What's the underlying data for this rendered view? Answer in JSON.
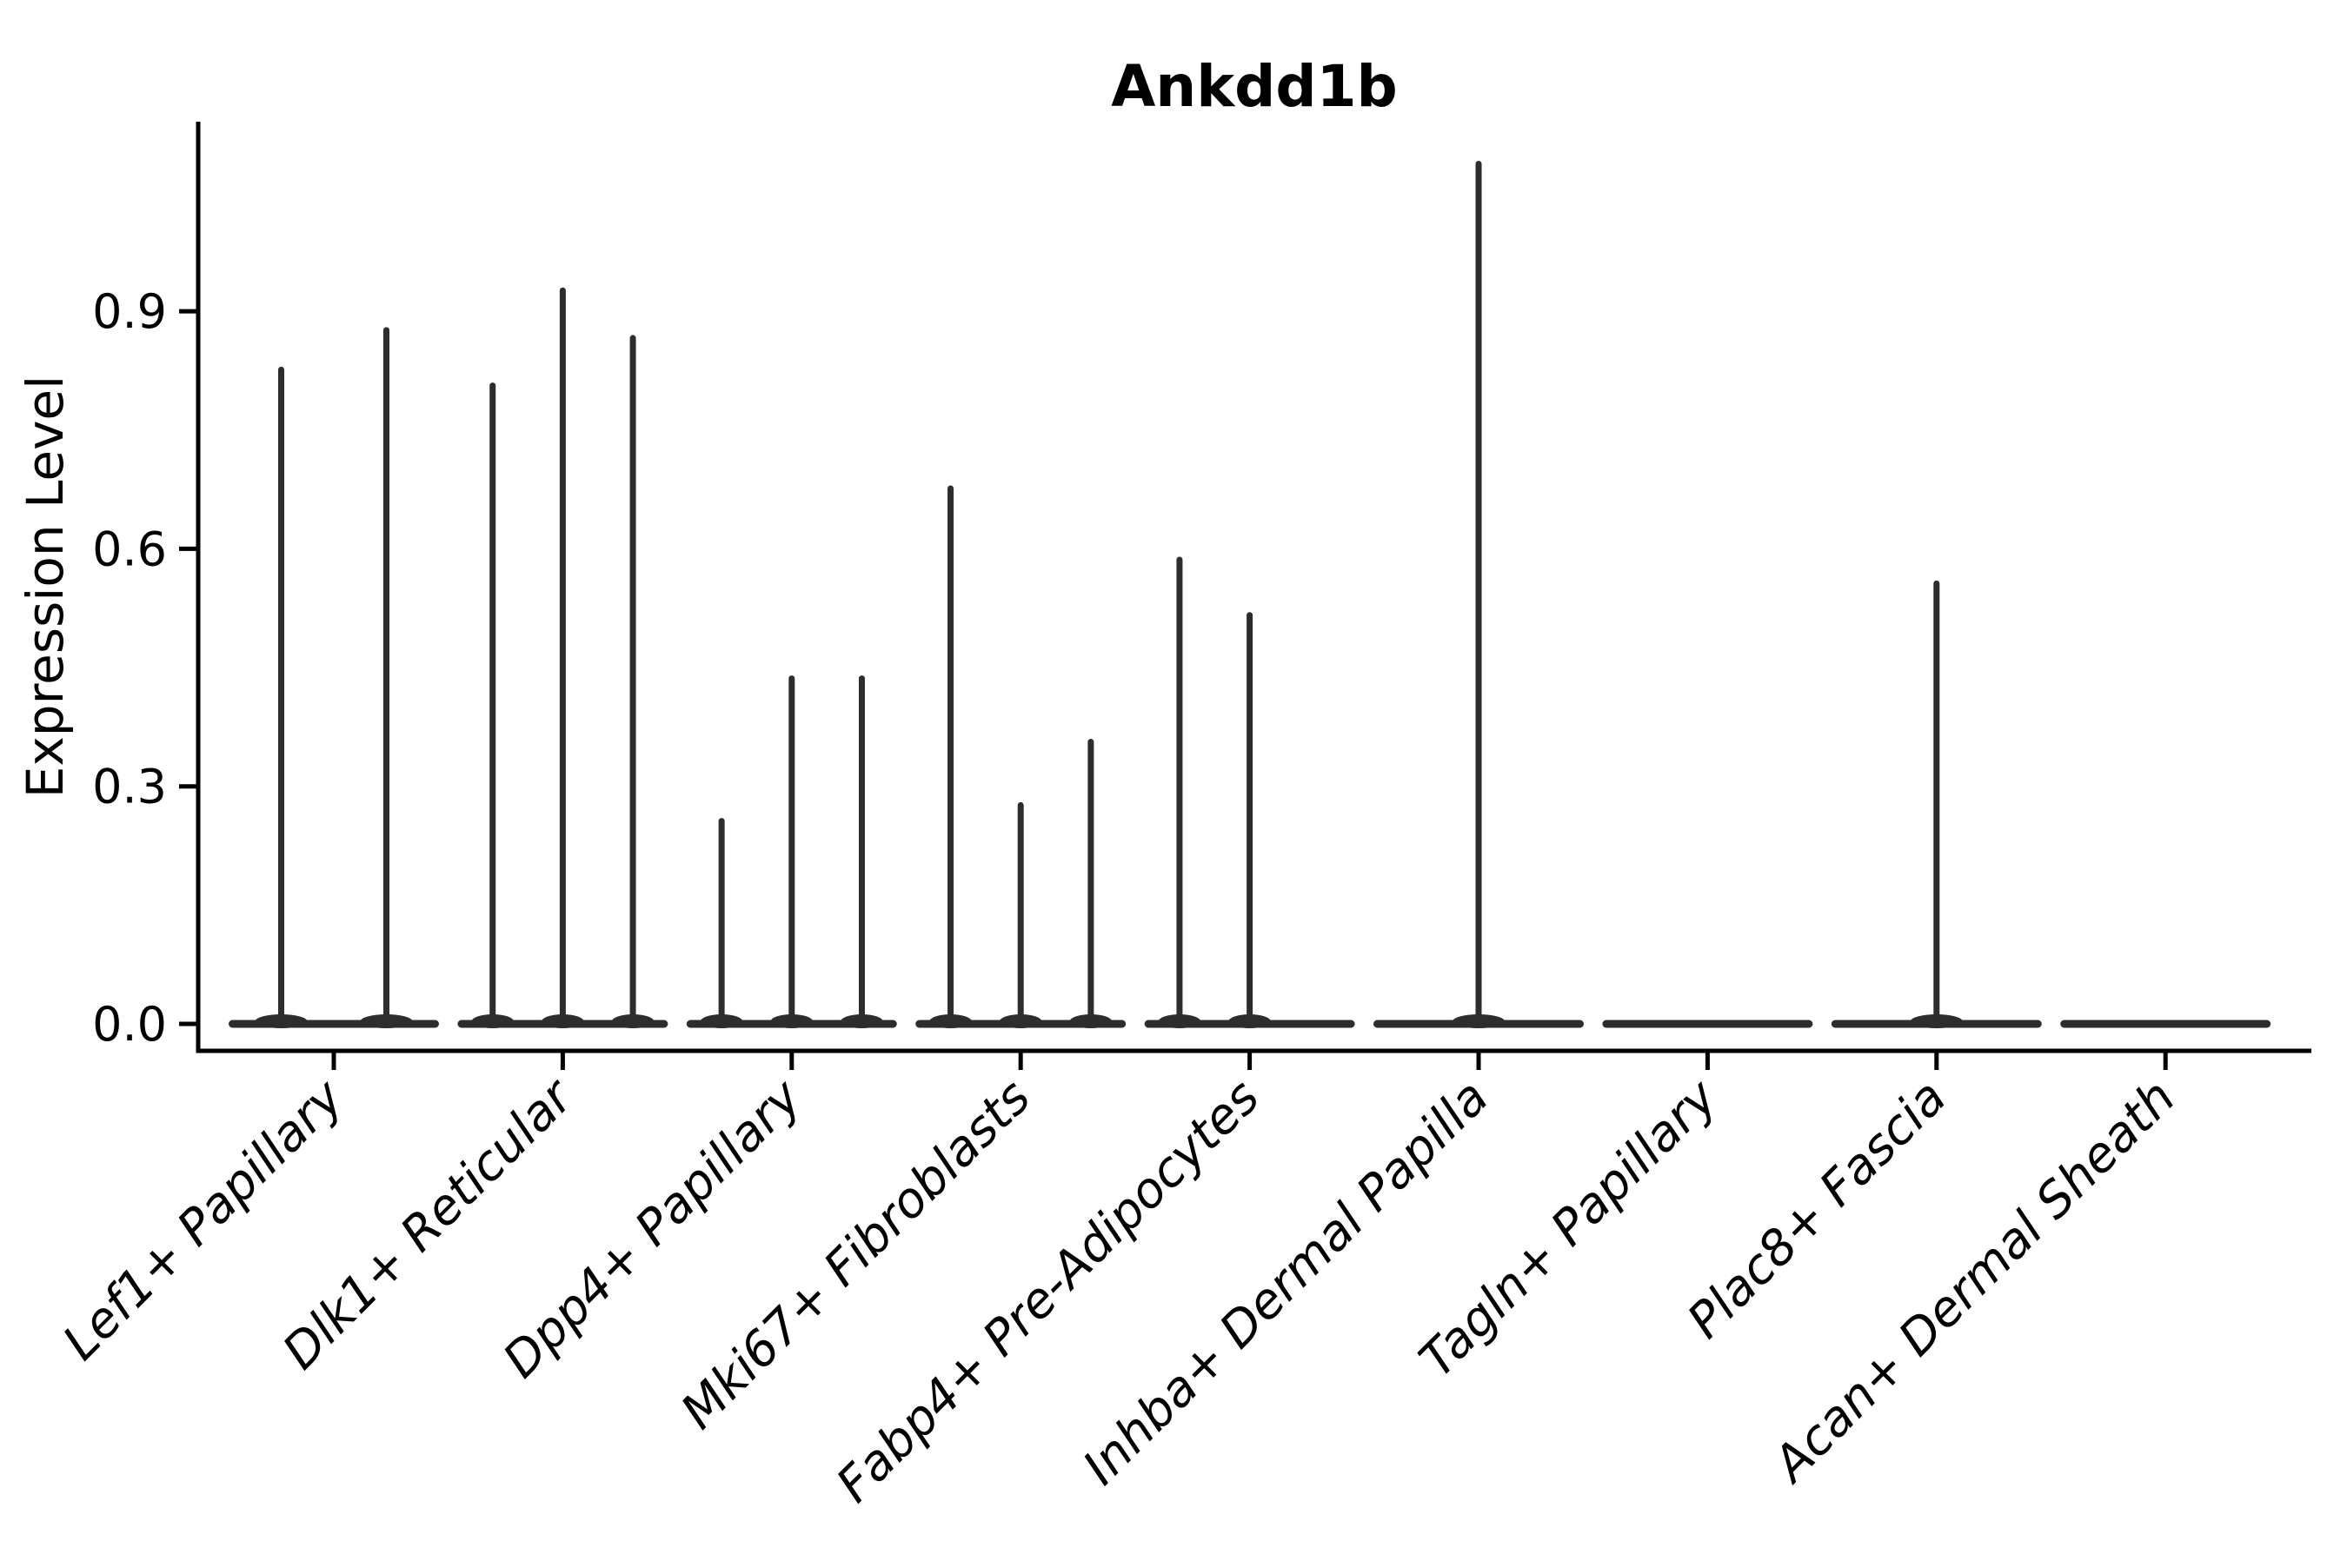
{
  "figure": {
    "background": "#ffffff"
  },
  "chart_data": {
    "type": "violin",
    "title": "Ankdd1b",
    "ylabel": "Expression Level",
    "xlabel": "",
    "grid": false,
    "legend_position": "none",
    "ylim": [
      -0.034,
      1.14
    ],
    "ytick_labels": [
      "0.0",
      "0.3",
      "0.6",
      "0.9"
    ],
    "ytick_values": [
      0.0,
      0.3,
      0.6,
      0.9
    ],
    "x_label_rotation_deg": 45,
    "x_label_style": "italic",
    "categories": [
      "Lef1+ Papillary",
      "Dlk1+ Reticular",
      "Dpp4+ Papillary",
      "Mki67+ Fibroblasts",
      "Fabp4+ Pre-Adipocytes",
      "Inhba+ Dermal Papilla",
      "Tagln+ Papillary",
      "Plac8+ Fascia",
      "Acan+ Dermal Sheath"
    ],
    "violin_maxima": [
      [
        0.83,
        0.88
      ],
      [
        0.81,
        0.93,
        0.87
      ],
      [
        0.26,
        0.44,
        0.44
      ],
      [
        0.68,
        0.28,
        0.36
      ],
      [
        0.59,
        0.52,
        0
      ],
      [
        1.09
      ],
      [
        0
      ],
      [
        0.56
      ],
      [
        0
      ]
    ],
    "baseline_value": 0.0,
    "colors": {
      "violin": "#2d2d2d",
      "axis": "#000000",
      "text": "#000000"
    }
  }
}
